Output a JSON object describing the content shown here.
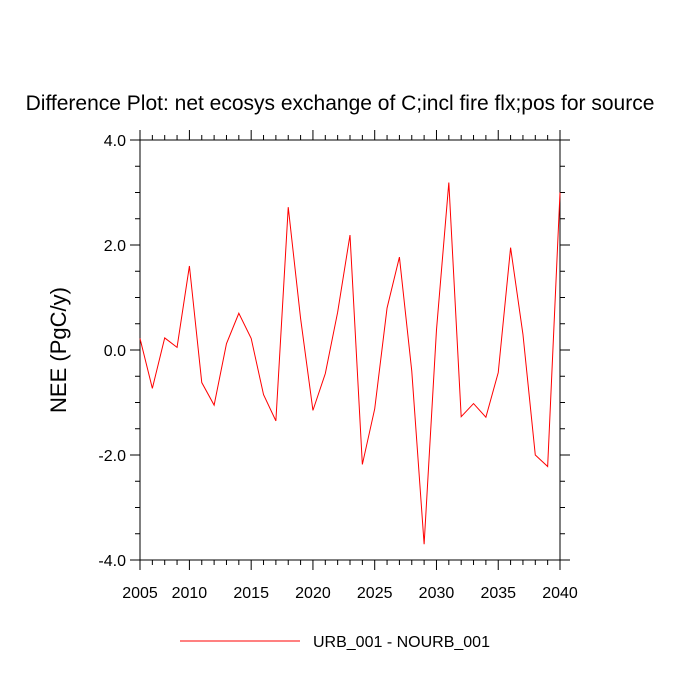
{
  "chart_data": {
    "type": "line",
    "title": "Difference Plot: net ecosys exchange of C;incl fire flx;pos for source",
    "xlabel": "",
    "ylabel": "NEE  (PgC/y)",
    "xlim": [
      2006,
      2040
    ],
    "ylim": [
      -4.0,
      4.0
    ],
    "x_ticks": [
      "2005",
      "2010",
      "2015",
      "2020",
      "2025",
      "2030",
      "2035",
      "2040"
    ],
    "y_ticks": [
      "4.0",
      "2.0",
      "0.0",
      "-2.0",
      "-4.0"
    ],
    "grid": false,
    "legend_position": "bottom",
    "series": [
      {
        "name": "URB_001 - NOURB_001",
        "color": "#ff0000",
        "x": [
          2006,
          2007,
          2008,
          2009,
          2010,
          2011,
          2012,
          2013,
          2014,
          2015,
          2016,
          2017,
          2018,
          2019,
          2020,
          2021,
          2022,
          2023,
          2024,
          2025,
          2026,
          2027,
          2028,
          2029,
          2030,
          2031,
          2032,
          2033,
          2034,
          2035,
          2036,
          2037,
          2038,
          2039,
          2040
        ],
        "values": [
          0.22,
          -0.73,
          0.23,
          0.05,
          1.6,
          -0.62,
          -1.05,
          0.12,
          0.7,
          0.22,
          -0.85,
          -1.35,
          2.72,
          0.6,
          -1.15,
          -0.45,
          0.72,
          2.19,
          -2.18,
          -1.12,
          0.8,
          1.77,
          -0.4,
          -3.7,
          0.38,
          3.19,
          -1.27,
          -1.02,
          -1.28,
          -0.43,
          1.95,
          0.3,
          -2.0,
          -2.22,
          3.0
        ]
      }
    ]
  }
}
